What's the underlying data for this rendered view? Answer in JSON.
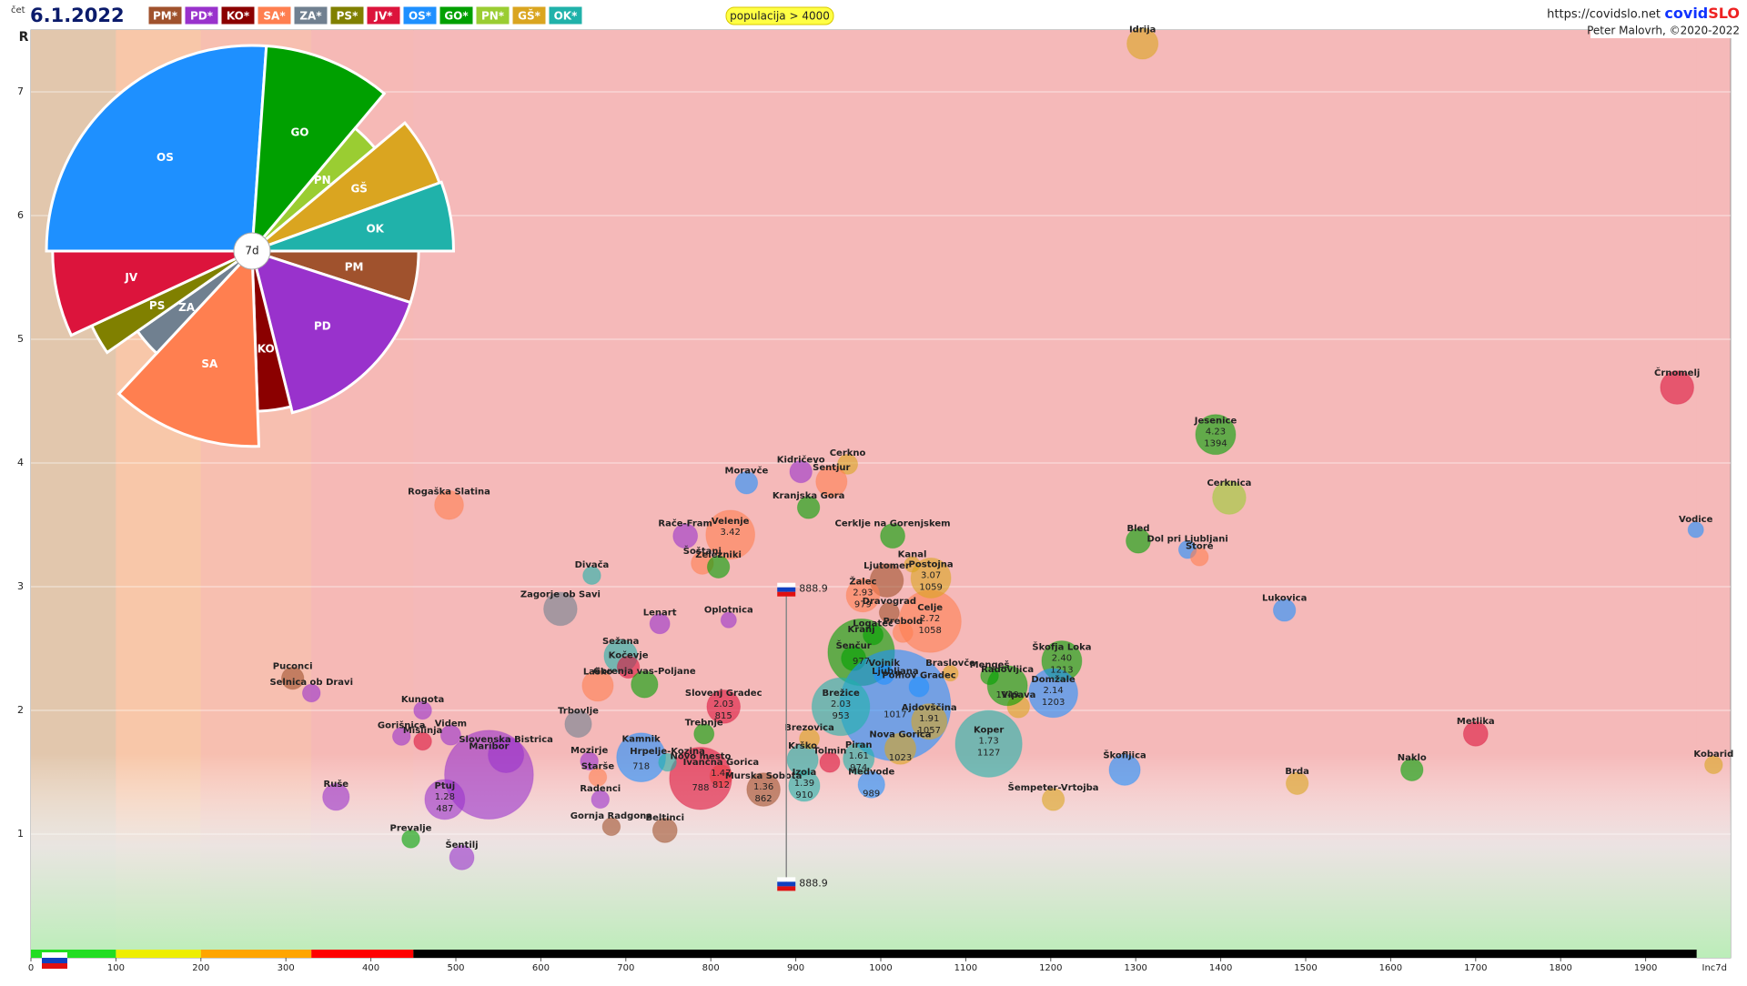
{
  "header": {
    "day": "čet",
    "date": "6.1.2022",
    "parties": [
      {
        "name": "PM*",
        "color": "#a0522d"
      },
      {
        "name": "PD*",
        "color": "#9932cc"
      },
      {
        "name": "KO*",
        "color": "#8b0000"
      },
      {
        "name": "SA*",
        "color": "#ff7f50"
      },
      {
        "name": "ZA*",
        "color": "#708090"
      },
      {
        "name": "PS*",
        "color": "#808000"
      },
      {
        "name": "JV*",
        "color": "#dc143c"
      },
      {
        "name": "OS*",
        "color": "#1e90ff"
      },
      {
        "name": "GO*",
        "color": "#00a000"
      },
      {
        "name": "PN*",
        "color": "#9acd32"
      },
      {
        "name": "GŠ*",
        "color": "#daa520"
      },
      {
        "name": "OK*",
        "color": "#20b2aa"
      }
    ],
    "filter": "populacija > 4000",
    "url": "https://covidslo.net",
    "brand_a": "covid",
    "brand_b": "SLO",
    "author": "Peter Malovrh, ©2020-2022"
  },
  "chart_data": [
    {
      "type": "scatter",
      "y_label": "R",
      "x_label": "Inc7d",
      "xlim": [
        0,
        2000
      ],
      "ylim": [
        0,
        7.5
      ],
      "xticks": [
        0,
        100,
        200,
        300,
        400,
        500,
        600,
        700,
        800,
        900,
        1000,
        1100,
        1200,
        1300,
        1400,
        1500,
        1600,
        1700,
        1800,
        1900
      ],
      "yticks": [
        1,
        2,
        3,
        4,
        5,
        6,
        7
      ],
      "grid": true,
      "bands": [
        {
          "from": 0,
          "to": 100,
          "color": "#22dd22",
          "bg": "#e2c7ad"
        },
        {
          "from": 100,
          "to": 200,
          "color": "#eeee00",
          "bg": "#f8c7a9"
        },
        {
          "from": 200,
          "to": 330,
          "color": "#ffa500",
          "bg": "#f7bfb0"
        },
        {
          "from": 330,
          "to": 450,
          "color": "#ff0000",
          "bg": "#f6b9b6"
        },
        {
          "from": 450,
          "to": 1960,
          "color": "#000000",
          "bg": "#f5b9b9"
        }
      ],
      "reference": {
        "x": 888.9,
        "y": [
          2.98,
          0.6
        ]
      },
      "labels": [
        "Idrija",
        "Črnomelj",
        "Vodice",
        "Jesenice",
        "Cerknica",
        "Bled",
        "Dol pri Ljubljani",
        "Štore",
        "Lukovica",
        "Metlika",
        "Naklo",
        "Kobarid",
        "Brda",
        "Škofljica",
        "Šempeter-Vrtojba",
        "Škofja Loka",
        "Domžale",
        "Vipava",
        "Radovljica",
        "Mengeš",
        "Koper",
        "Celje",
        "Postojna",
        "Kanal",
        "Ljutomer",
        "Cerklje na Gorenjskem",
        "Žalec",
        "Dravograd",
        "Prebold",
        "Logatec",
        "Kranj",
        "Šenčur",
        "Vojnik",
        "Braslovče",
        "Polhov Gradec",
        "Ljubljana",
        "Brežice",
        "Ajdovščina",
        "Nova Gorica",
        "Piran",
        "Medvode",
        "Tolmin",
        "Krško",
        "Brezovica",
        "Izola",
        "Murska Sobota",
        "Ivančna Gorica",
        "Novo mesto",
        "Trebnje",
        "Slovenj Gradec",
        "Oplotnica",
        "Velenje",
        "Šoštanj",
        "Železniki",
        "Rače-Fram",
        "Moravče",
        "Kidričevo",
        "Cerkno",
        "Šentjur",
        "Kranjska Gora",
        "Rogaška Slatina",
        "Divača",
        "Zagorje ob Savi",
        "Lenart",
        "Sežana",
        "Kočevje",
        "Laško",
        "Gorenja vas-Poljane",
        "Puconci",
        "Selnica ob Dravi",
        "Kungota",
        "Gorišnica",
        "Mislinja",
        "Videm",
        "Maribor",
        "Slovenska Bistrica",
        "Ruše",
        "Ptuj",
        "Prevalje",
        "Šentilj",
        "Radenci",
        "Beltinci",
        "Gornja Radgona",
        "Mozirje",
        "Kamnik",
        "Trbovlje",
        "Starše",
        "Hrpelje-Kozina"
      ],
      "x": [
        1308,
        1937,
        1959,
        1394,
        1410,
        1303,
        1361,
        1375,
        1475,
        1700,
        1625,
        1980,
        1490,
        1287,
        1203,
        1213,
        1203,
        1162,
        1149,
        1128,
        1127,
        1058,
        1059,
        1037,
        1007,
        1014,
        979,
        1010,
        1026,
        991,
        977,
        968,
        1004,
        1082,
        1045,
        1017,
        953,
        1057,
        1023,
        974,
        989,
        940,
        908,
        916,
        910,
        862,
        812,
        788,
        792,
        815,
        821,
        823,
        790,
        809,
        770,
        842,
        906,
        961,
        942,
        915,
        492,
        660,
        623,
        740,
        694,
        703,
        667,
        722,
        308,
        330,
        461,
        436,
        461,
        494,
        539,
        559,
        359,
        487,
        447,
        507,
        670,
        746,
        683,
        657,
        718,
        644,
        667,
        749
      ],
      "values": [
        7.39,
        4.61,
        3.46,
        4.23,
        3.72,
        3.37,
        3.3,
        3.24,
        2.81,
        1.81,
        1.52,
        1.56,
        1.41,
        1.52,
        1.28,
        2.4,
        2.14,
        2.03,
        2.2,
        2.28,
        1.73,
        2.72,
        3.07,
        3.18,
        3.05,
        3.41,
        2.93,
        2.79,
        2.63,
        2.61,
        2.47,
        2.42,
        2.29,
        2.3,
        2.19,
        2.04,
        2.03,
        1.91,
        1.69,
        1.61,
        1.4,
        1.58,
        1.6,
        1.77,
        1.39,
        1.36,
        1.47,
        1.45,
        1.81,
        2.03,
        2.73,
        3.42,
        3.19,
        3.16,
        3.41,
        3.84,
        3.93,
        3.99,
        3.85,
        3.64,
        3.66,
        3.09,
        2.82,
        2.7,
        2.44,
        2.35,
        2.2,
        2.21,
        2.26,
        2.14,
        2.0,
        1.79,
        1.75,
        1.8,
        1.48,
        1.64,
        1.3,
        1.28,
        0.96,
        0.81,
        1.28,
        1.03,
        1.06,
        1.59,
        1.62,
        1.89,
        1.46,
        1.58
      ],
      "sizes": [
        14,
        15,
        7,
        18,
        15,
        11,
        8,
        8,
        10,
        11,
        10,
        8,
        10,
        14,
        10,
        18,
        22,
        10,
        18,
        8,
        30,
        28,
        18,
        7,
        15,
        11,
        15,
        9,
        9,
        9,
        30,
        11,
        9,
        7,
        9,
        50,
        26,
        16,
        14,
        14,
        12,
        9,
        14,
        9,
        14,
        15,
        10,
        28,
        9,
        15,
        7,
        22,
        10,
        10,
        11,
        10,
        10,
        9,
        14,
        10,
        13,
        8,
        15,
        9,
        15,
        10,
        14,
        12,
        10,
        8,
        8,
        8,
        8,
        9,
        40,
        16,
        12,
        18,
        8,
        11,
        8,
        11,
        8,
        8,
        22,
        12,
        8,
        8
      ],
      "colors": [
        "#daa520",
        "#dc143c",
        "#1e90ff",
        "#00a000",
        "#9acd32",
        "#00a000",
        "#1e90ff",
        "#ff7f50",
        "#1e90ff",
        "#dc143c",
        "#00a000",
        "#daa520",
        "#daa520",
        "#1e90ff",
        "#daa520",
        "#00a000",
        "#1e90ff",
        "#daa520",
        "#00a000",
        "#00a000",
        "#20b2aa",
        "#ff7f50",
        "#daa520",
        "#daa520",
        "#a0522d",
        "#00a000",
        "#ff7f50",
        "#a0522d",
        "#ff7f50",
        "#00a000",
        "#00a000",
        "#00a000",
        "#1e90ff",
        "#daa520",
        "#1e90ff",
        "#1e90ff",
        "#20b2aa",
        "#daa520",
        "#daa520",
        "#20b2aa",
        "#1e90ff",
        "#dc143c",
        "#20b2aa",
        "#daa520",
        "#20b2aa",
        "#a0522d",
        "#ff7f50",
        "#dc143c",
        "#00a000",
        "#dc143c",
        "#9932cc",
        "#ff7f50",
        "#ff7f50",
        "#00a000",
        "#9932cc",
        "#1e90ff",
        "#9932cc",
        "#daa520",
        "#ff7f50",
        "#00a000",
        "#ff7f50",
        "#20b2aa",
        "#708090",
        "#9932cc",
        "#20b2aa",
        "#dc143c",
        "#ff7f50",
        "#00a000",
        "#a0522d",
        "#9932cc",
        "#9932cc",
        "#9932cc",
        "#dc143c",
        "#9932cc",
        "#9932cc",
        "#9932cc",
        "#9932cc",
        "#9932cc",
        "#00a000",
        "#9932cc",
        "#9932cc",
        "#a0522d",
        "#a0522d",
        "#9932cc",
        "#1e90ff",
        "#708090",
        "#ff7f50",
        "#20b2aa"
      ],
      "value_labels": [
        null,
        null,
        null,
        "4.23",
        null,
        null,
        null,
        null,
        null,
        null,
        null,
        null,
        null,
        null,
        null,
        "2.40",
        "2.14",
        null,
        null,
        null,
        "1.73",
        "2.72",
        "3.07",
        null,
        null,
        null,
        "2.93",
        null,
        null,
        null,
        null,
        null,
        null,
        null,
        null,
        null,
        "2.03",
        "1.91",
        null,
        "1.61",
        null,
        null,
        null,
        null,
        "1.39",
        "1.36",
        "1.47",
        null,
        null,
        "2.03",
        null,
        "3.42",
        null,
        null,
        null,
        null,
        null,
        null,
        null,
        null,
        null,
        null,
        null,
        null,
        null,
        null,
        null,
        null,
        null,
        null,
        null,
        null,
        null,
        null,
        null,
        null,
        null,
        "1.28",
        null,
        null,
        null,
        null,
        null,
        null,
        null,
        null,
        null,
        null
      ],
      "x_labels": [
        null,
        null,
        null,
        "1394",
        null,
        null,
        null,
        null,
        null,
        null,
        null,
        null,
        null,
        null,
        null,
        "1213",
        "1203",
        null,
        "1149",
        null,
        "1127",
        "1058",
        "1059",
        null,
        null,
        null,
        "979",
        null,
        null,
        null,
        "977",
        null,
        null,
        null,
        null,
        "1017",
        "953",
        "1057",
        "1023",
        "974",
        "989",
        null,
        null,
        null,
        "910",
        "862",
        "812",
        "788",
        null,
        "815",
        null,
        null,
        null,
        null,
        null,
        null,
        null,
        null,
        null,
        null,
        null,
        null,
        null,
        null,
        null,
        null,
        null,
        null,
        null,
        null,
        null,
        null,
        null,
        null,
        null,
        null,
        null,
        "487",
        null,
        null,
        null,
        null,
        null,
        null,
        "718",
        null,
        null,
        null
      ]
    },
    {
      "type": "pie",
      "center_label": "7d",
      "categories": [
        "OS",
        "GO",
        "PN",
        "GŠ",
        "OK",
        "PM",
        "PD",
        "KO",
        "SA",
        "ZA",
        "PS",
        "JV"
      ],
      "values": [
        94,
        36,
        10,
        20,
        20,
        18,
        58,
        12,
        45,
        12,
        10,
        25
      ],
      "radii": [
        100,
        100,
        78,
        97,
        98,
        81,
        81,
        78,
        95,
        68,
        86,
        97
      ],
      "colors": [
        "#1e90ff",
        "#00a000",
        "#9acd32",
        "#daa520",
        "#20b2aa",
        "#a0522d",
        "#9932cc",
        "#8b0000",
        "#ff7f50",
        "#708090",
        "#808000",
        "#dc143c"
      ]
    }
  ]
}
